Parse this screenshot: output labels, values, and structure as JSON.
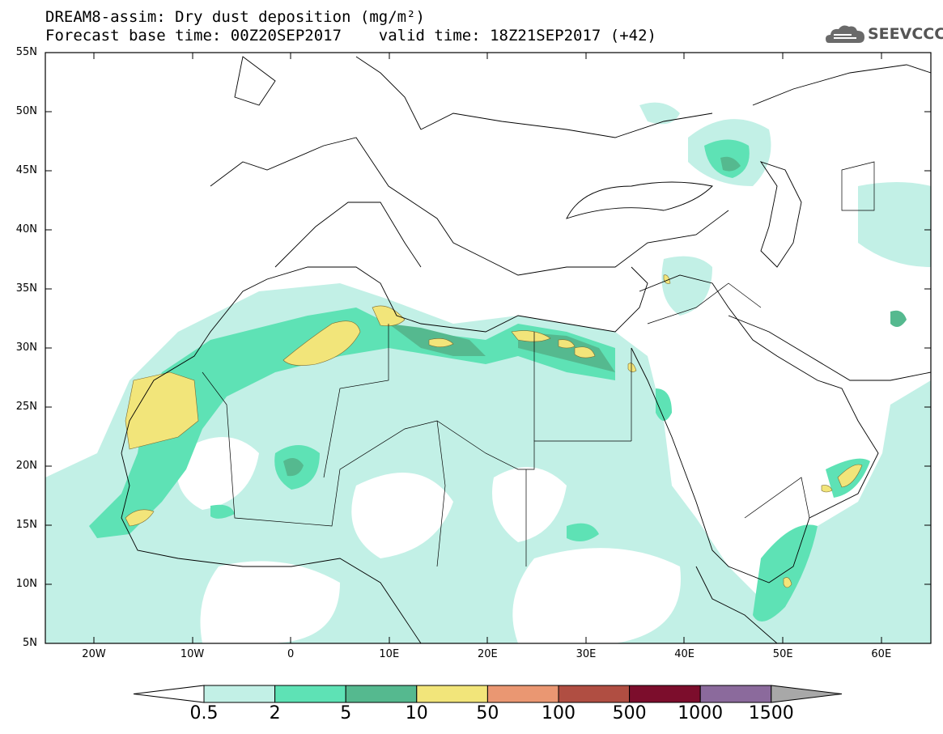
{
  "title_line1": "DREAM8-assim: Dry dust deposition (mg/m²)",
  "title_line2": "Forecast base time: 00Z20SEP2017    valid time: 18Z21SEP2017 (+42)",
  "logo_text": "SEEVCCC",
  "logo_icon": "cloud-icon",
  "lat_labels": [
    "55N",
    "50N",
    "45N",
    "40N",
    "35N",
    "30N",
    "25N",
    "20N",
    "15N",
    "10N",
    "5N"
  ],
  "lon_labels": [
    "20W",
    "10W",
    "0",
    "10E",
    "20E",
    "30E",
    "40E",
    "50E",
    "60E"
  ],
  "colorbar": {
    "labels": [
      "0.5",
      "2",
      "5",
      "10",
      "50",
      "100",
      "500",
      "1000",
      "1500"
    ],
    "colors": [
      "#ffffff",
      "#c2f0e6",
      "#5ee2b5",
      "#55b98f",
      "#f2e57a",
      "#ea9772",
      "#b04e42",
      "#7c0d2c",
      "#8b6a9c",
      "#a8a8a8"
    ]
  }
}
